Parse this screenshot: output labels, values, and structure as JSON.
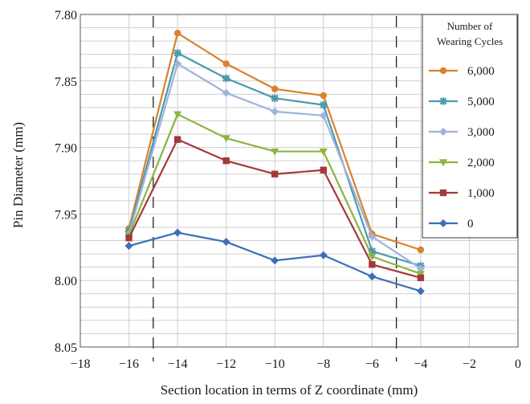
{
  "chart_data": {
    "type": "line",
    "title": "",
    "xlabel": "Section location in terms of Z coordinate (mm)",
    "ylabel": "Pin Diameter (mm)",
    "xlim": [
      -18,
      0
    ],
    "ylim": [
      7.8,
      8.05
    ],
    "y_inverted": true,
    "grid": true,
    "x_ticks": [
      -18,
      -16,
      -14,
      -12,
      -10,
      -8,
      -6,
      -4,
      -2,
      0
    ],
    "x_tick_labels": [
      "−18",
      "−16",
      "−14",
      "−12",
      "−10",
      "−8",
      "−6",
      "−4",
      "−2",
      "0"
    ],
    "y_ticks": [
      7.8,
      7.85,
      7.9,
      7.95,
      8.0,
      8.05
    ],
    "y_tick_labels": [
      "7.80",
      "7.85",
      "7.90",
      "7.95",
      "8.00",
      "8.05"
    ],
    "reference_lines_x": [
      -15,
      -5
    ],
    "x": [
      -16,
      -14,
      -12,
      -10,
      -8,
      -6,
      -4
    ],
    "legend": {
      "title_line1": "Number of",
      "title_line2": "Wearing Cycles",
      "position": "top-right"
    },
    "series": [
      {
        "name": "6,000",
        "color": "#d9822b",
        "marker": "circle",
        "values": [
          7.961,
          7.814,
          7.837,
          7.856,
          7.861,
          7.965,
          7.977
        ]
      },
      {
        "name": "5,000",
        "color": "#4a9aae",
        "marker": "asterisk",
        "values": [
          7.963,
          7.829,
          7.848,
          7.863,
          7.868,
          7.978,
          7.989
        ]
      },
      {
        "name": "3,000",
        "color": "#9fb3dc",
        "marker": "diamond",
        "values": [
          7.965,
          7.837,
          7.859,
          7.873,
          7.876,
          7.967,
          7.991
        ]
      },
      {
        "name": "2,000",
        "color": "#8db43f",
        "marker": "triangle",
        "values": [
          7.966,
          7.875,
          7.893,
          7.903,
          7.903,
          7.982,
          7.995
        ]
      },
      {
        "name": "1,000",
        "color": "#a33a3a",
        "marker": "square",
        "values": [
          7.968,
          7.894,
          7.91,
          7.92,
          7.917,
          7.988,
          7.998
        ]
      },
      {
        "name": "0",
        "color": "#3d6fb6",
        "marker": "diamond",
        "values": [
          7.974,
          7.964,
          7.971,
          7.985,
          7.981,
          7.997,
          8.008
        ]
      }
    ]
  }
}
